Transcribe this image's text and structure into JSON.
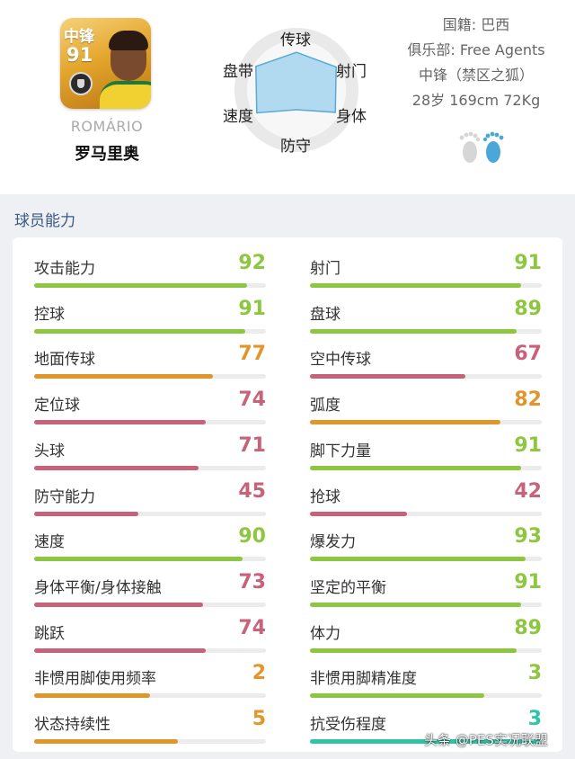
{
  "player": {
    "card_position": "中锋",
    "card_rating": "91",
    "name_en": "ROMÁRIO",
    "name_cn": "罗马里奥"
  },
  "radar": {
    "axes": [
      "传球",
      "射门",
      "身体",
      "防守",
      "速度",
      "盘带"
    ],
    "values": [
      0.72,
      0.88,
      0.86,
      0.38,
      0.88,
      0.9
    ],
    "fill_color": "#a9d6ee",
    "stroke_color": "#5aaad6"
  },
  "info": {
    "nationality": "国籍: 巴西",
    "club": "俱乐部: Free Agents",
    "position": "中锋（禁区之狐）",
    "bio": "28岁 169cm 72Kg"
  },
  "section": {
    "title": "球员能力"
  },
  "colors": {
    "green": "#8dc63f",
    "orange": "#e2952a",
    "red": "#c8627a",
    "teal": "#2ec4a6"
  },
  "stats_left": [
    {
      "label": "攻击能力",
      "value": "92",
      "pct": 92,
      "color": "green"
    },
    {
      "label": "控球",
      "value": "91",
      "pct": 91,
      "color": "green"
    },
    {
      "label": "地面传球",
      "value": "77",
      "pct": 77,
      "color": "orange"
    },
    {
      "label": "定位球",
      "value": "74",
      "pct": 74,
      "color": "red"
    },
    {
      "label": "头球",
      "value": "71",
      "pct": 71,
      "color": "red"
    },
    {
      "label": "防守能力",
      "value": "45",
      "pct": 45,
      "color": "red"
    },
    {
      "label": "速度",
      "value": "90",
      "pct": 90,
      "color": "green"
    },
    {
      "label": "身体平衡/身体接触",
      "value": "73",
      "pct": 73,
      "color": "red"
    },
    {
      "label": "跳跃",
      "value": "74",
      "pct": 74,
      "color": "red"
    },
    {
      "label": "非惯用脚使用频率",
      "value": "2",
      "pct": 50,
      "color": "orange"
    },
    {
      "label": "状态持续性",
      "value": "5",
      "pct": 62,
      "color": "orange"
    }
  ],
  "stats_right": [
    {
      "label": "射门",
      "value": "91",
      "pct": 91,
      "color": "green"
    },
    {
      "label": "盘球",
      "value": "89",
      "pct": 89,
      "color": "green"
    },
    {
      "label": "空中传球",
      "value": "67",
      "pct": 67,
      "color": "red"
    },
    {
      "label": "弧度",
      "value": "82",
      "pct": 82,
      "color": "orange"
    },
    {
      "label": "脚下力量",
      "value": "91",
      "pct": 91,
      "color": "green"
    },
    {
      "label": "抢球",
      "value": "42",
      "pct": 42,
      "color": "red"
    },
    {
      "label": "爆发力",
      "value": "93",
      "pct": 93,
      "color": "green"
    },
    {
      "label": "坚定的平衡",
      "value": "91",
      "pct": 91,
      "color": "green"
    },
    {
      "label": "体力",
      "value": "89",
      "pct": 89,
      "color": "green"
    },
    {
      "label": "非惯用脚精准度",
      "value": "3",
      "pct": 75,
      "color": "green"
    },
    {
      "label": "抗受伤程度",
      "value": "3",
      "pct": 100,
      "color": "teal"
    }
  ],
  "watermark": "头条 @PES实况联盟"
}
